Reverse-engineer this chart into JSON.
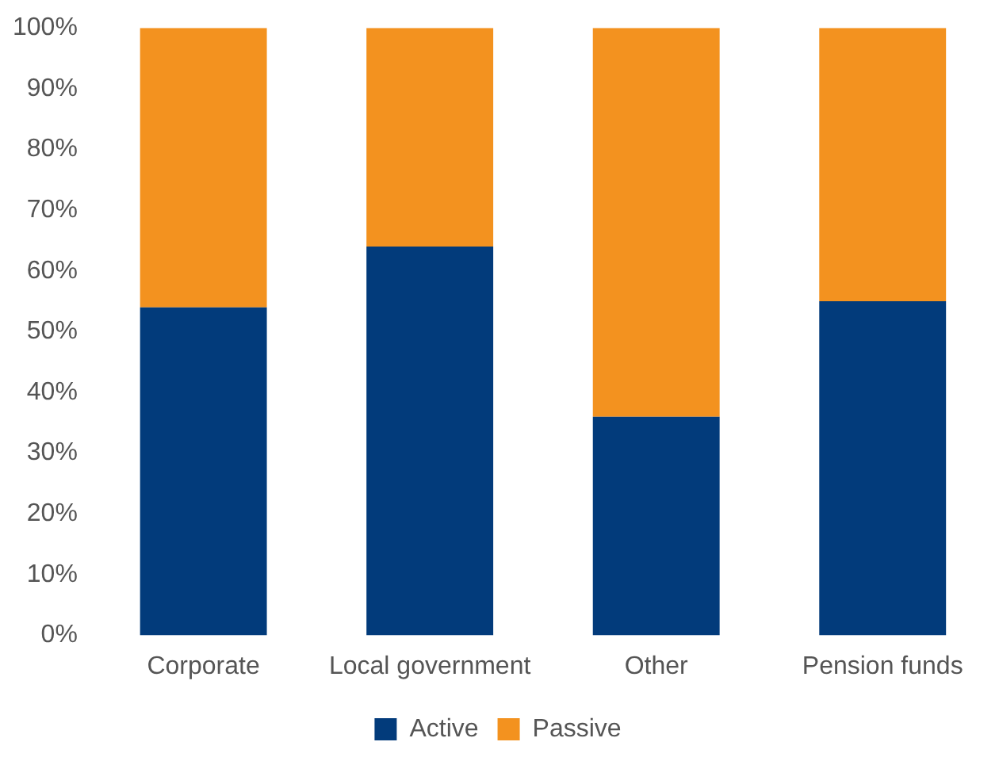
{
  "chart_data": {
    "type": "bar",
    "stacked": true,
    "categories": [
      "Corporate",
      "Local government",
      "Other",
      "Pension funds"
    ],
    "series": [
      {
        "name": "Active",
        "color": "#023b7b",
        "values": [
          54,
          64,
          36,
          55
        ]
      },
      {
        "name": "Passive",
        "color": "#f3921f",
        "values": [
          46,
          36,
          64,
          45
        ]
      }
    ],
    "ylim": [
      0,
      100
    ],
    "yticks": [
      {
        "value": 0,
        "label": "0%"
      },
      {
        "value": 10,
        "label": "10%"
      },
      {
        "value": 20,
        "label": "20%"
      },
      {
        "value": 30,
        "label": "30%"
      },
      {
        "value": 40,
        "label": "40%"
      },
      {
        "value": 50,
        "label": "50%"
      },
      {
        "value": 60,
        "label": "60%"
      },
      {
        "value": 70,
        "label": "70%"
      },
      {
        "value": 80,
        "label": "80%"
      },
      {
        "value": 90,
        "label": "90%"
      },
      {
        "value": 100,
        "label": "100%"
      }
    ],
    "grid": false,
    "legend": "bottom"
  }
}
